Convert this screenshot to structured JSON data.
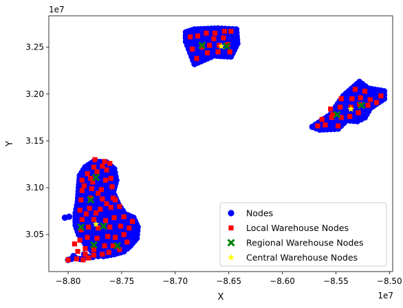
{
  "chart_data": {
    "type": "scatter",
    "xlabel": "X",
    "ylabel": "Y",
    "x_offset_label": "1e7",
    "y_offset_label": "1e7",
    "xlim": [
      -8.818,
      -8.497
    ],
    "ylim": [
      3.0105,
      3.2835
    ],
    "xticks": [
      {
        "value": -8.8,
        "label": "−8.80"
      },
      {
        "value": -8.75,
        "label": "−8.75"
      },
      {
        "value": -8.7,
        "label": "−8.70"
      },
      {
        "value": -8.65,
        "label": "−8.65"
      },
      {
        "value": -8.6,
        "label": "−8.60"
      },
      {
        "value": -8.55,
        "label": "−8.55"
      },
      {
        "value": -8.5,
        "label": "−8.50"
      }
    ],
    "yticks": [
      {
        "value": 3.05,
        "label": "3.05"
      },
      {
        "value": 3.1,
        "label": "3.10"
      },
      {
        "value": 3.15,
        "label": "3.15"
      },
      {
        "value": 3.2,
        "label": "3.20"
      },
      {
        "value": 3.25,
        "label": "3.25"
      }
    ],
    "legend_position": "lower-right",
    "series": [
      {
        "name": "Nodes",
        "marker": "circle",
        "color": "#0000ff",
        "clusters": [
          {
            "outline": [
              [
                -8.789,
                3.113
              ],
              [
                -8.784,
                3.122
              ],
              [
                -8.776,
                3.128
              ],
              [
                -8.764,
                3.127
              ],
              [
                -8.757,
                3.12
              ],
              [
                -8.755,
                3.108
              ],
              [
                -8.758,
                3.095
              ],
              [
                -8.753,
                3.082
              ],
              [
                -8.747,
                3.072
              ],
              [
                -8.739,
                3.068
              ],
              [
                -8.735,
                3.058
              ],
              [
                -8.736,
                3.046
              ],
              [
                -8.742,
                3.038
              ],
              [
                -8.748,
                3.032
              ],
              [
                -8.757,
                3.029
              ],
              [
                -8.767,
                3.027
              ],
              [
                -8.776,
                3.03
              ],
              [
                -8.784,
                3.04
              ],
              [
                -8.79,
                3.05
              ],
              [
                -8.793,
                3.06
              ],
              [
                -8.793,
                3.073
              ],
              [
                -8.791,
                3.085
              ],
              [
                -8.79,
                3.1
              ]
            ],
            "step_x": 0.0045,
            "step_y": 0.0048
          },
          {
            "outline": [
              [
                -8.69,
                3.266
              ],
              [
                -8.682,
                3.269
              ],
              [
                -8.66,
                3.27
              ],
              [
                -8.643,
                3.269
              ],
              [
                -8.642,
                3.254
              ],
              [
                -8.648,
                3.24
              ],
              [
                -8.664,
                3.241
              ],
              [
                -8.682,
                3.232
              ],
              [
                -8.686,
                3.244
              ],
              [
                -8.69,
                3.256
              ]
            ],
            "step_x": 0.0045,
            "step_y": 0.0048
          },
          {
            "outline": [
              [
                -8.572,
                3.165
              ],
              [
                -8.555,
                3.178
              ],
              [
                -8.543,
                3.198
              ],
              [
                -8.528,
                3.213
              ],
              [
                -8.52,
                3.206
              ],
              [
                -8.505,
                3.203
              ],
              [
                -8.505,
                3.195
              ],
              [
                -8.518,
                3.185
              ],
              [
                -8.523,
                3.175
              ],
              [
                -8.53,
                3.171
              ],
              [
                -8.54,
                3.172
              ],
              [
                -8.548,
                3.163
              ],
              [
                -8.565,
                3.162
              ]
            ],
            "step_x": 0.0045,
            "step_y": 0.0048
          }
        ],
        "extra_points": [
          [
            -8.803,
            3.068
          ],
          [
            -8.799,
            3.069
          ],
          [
            -8.8,
            3.023
          ],
          [
            -8.797,
            3.024
          ],
          [
            -8.793,
            3.025
          ],
          [
            -8.789,
            3.024
          ],
          [
            -8.785,
            3.025
          ],
          [
            -8.781,
            3.026
          ],
          [
            -8.777,
            3.026
          ],
          [
            -8.772,
            3.027
          ],
          [
            -8.795,
            3.027
          ],
          [
            -8.785,
            3.029
          ]
        ]
      },
      {
        "name": "Local Warehouse Nodes",
        "marker": "square",
        "color": "#ff0000",
        "points": [
          [
            -8.8,
            3.023
          ],
          [
            -8.792,
            3.024
          ],
          [
            -8.786,
            3.023
          ],
          [
            -8.781,
            3.025
          ],
          [
            -8.791,
            3.032
          ],
          [
            -8.784,
            3.035
          ],
          [
            -8.776,
            3.034
          ],
          [
            -8.766,
            3.038
          ],
          [
            -8.758,
            3.038
          ],
          [
            -8.789,
            3.044
          ],
          [
            -8.782,
            3.047
          ],
          [
            -8.773,
            3.046
          ],
          [
            -8.763,
            3.048
          ],
          [
            -8.756,
            3.047
          ],
          [
            -8.748,
            3.05
          ],
          [
            -8.788,
            3.055
          ],
          [
            -8.781,
            3.058
          ],
          [
            -8.772,
            3.057
          ],
          [
            -8.761,
            3.058
          ],
          [
            -8.751,
            3.059
          ],
          [
            -8.743,
            3.057
          ],
          [
            -8.74,
            3.064
          ],
          [
            -8.787,
            3.066
          ],
          [
            -8.776,
            3.066
          ],
          [
            -8.765,
            3.065
          ],
          [
            -8.757,
            3.068
          ],
          [
            -8.748,
            3.069
          ],
          [
            -8.789,
            3.076
          ],
          [
            -8.78,
            3.078
          ],
          [
            -8.77,
            3.077
          ],
          [
            -8.76,
            3.079
          ],
          [
            -8.752,
            3.08
          ],
          [
            -8.788,
            3.087
          ],
          [
            -8.779,
            3.089
          ],
          [
            -8.768,
            3.088
          ],
          [
            -8.758,
            3.089
          ],
          [
            -8.787,
            3.097
          ],
          [
            -8.778,
            3.099
          ],
          [
            -8.769,
            3.098
          ],
          [
            -8.759,
            3.101
          ],
          [
            -8.787,
            3.108
          ],
          [
            -8.777,
            3.106
          ],
          [
            -8.765,
            3.108
          ],
          [
            -8.76,
            3.11
          ],
          [
            -8.782,
            3.115
          ],
          [
            -8.773,
            3.117
          ],
          [
            -8.764,
            3.119
          ],
          [
            -8.776,
            3.122
          ],
          [
            -8.768,
            3.123
          ],
          [
            -8.766,
            3.128
          ],
          [
            -8.775,
            3.13
          ],
          [
            -8.761,
            3.126
          ],
          [
            -8.784,
            3.029
          ],
          [
            -8.776,
            3.028
          ],
          [
            -8.768,
            3.029
          ],
          [
            -8.762,
            3.031
          ],
          [
            -8.745,
            3.042
          ],
          [
            -8.752,
            3.034
          ],
          [
            -8.794,
            3.04
          ],
          [
            -8.783,
            3.072
          ],
          [
            -8.774,
            3.073
          ],
          [
            -8.764,
            3.083
          ],
          [
            -8.756,
            3.087
          ],
          [
            -8.785,
            3.102
          ],
          [
            -8.772,
            3.094
          ],
          [
            -8.779,
            3.11
          ],
          [
            -8.686,
            3.261
          ],
          [
            -8.679,
            3.262
          ],
          [
            -8.671,
            3.265
          ],
          [
            -8.663,
            3.265
          ],
          [
            -8.654,
            3.267
          ],
          [
            -8.648,
            3.267
          ],
          [
            -8.684,
            3.248
          ],
          [
            -8.675,
            3.25
          ],
          [
            -8.668,
            3.252
          ],
          [
            -8.659,
            3.252
          ],
          [
            -8.651,
            3.253
          ],
          [
            -8.68,
            3.238
          ],
          [
            -8.67,
            3.244
          ],
          [
            -8.66,
            3.245
          ],
          [
            -8.649,
            3.245
          ],
          [
            -8.664,
            3.259
          ],
          [
            -8.655,
            3.26
          ],
          [
            -8.567,
            3.166
          ],
          [
            -8.56,
            3.167
          ],
          [
            -8.548,
            3.166
          ],
          [
            -8.563,
            3.173
          ],
          [
            -8.554,
            3.175
          ],
          [
            -8.545,
            3.175
          ],
          [
            -8.555,
            3.184
          ],
          [
            -8.546,
            3.186
          ],
          [
            -8.536,
            3.186
          ],
          [
            -8.528,
            3.189
          ],
          [
            -8.52,
            3.188
          ],
          [
            -8.512,
            3.191
          ],
          [
            -8.545,
            3.195
          ],
          [
            -8.535,
            3.195
          ],
          [
            -8.527,
            3.196
          ],
          [
            -8.518,
            3.194
          ],
          [
            -8.508,
            3.198
          ],
          [
            -8.532,
            3.205
          ],
          [
            -8.523,
            3.203
          ],
          [
            -8.553,
            3.178
          ],
          [
            -8.537,
            3.176
          ],
          [
            -8.529,
            3.18
          ]
        ]
      },
      {
        "name": "Regional Warehouse Nodes",
        "marker": "x",
        "color": "#008000",
        "points": [
          [
            -8.788,
            3.058
          ],
          [
            -8.779,
            3.087
          ],
          [
            -8.774,
            3.111
          ],
          [
            -8.767,
            3.059
          ],
          [
            -8.776,
            3.039
          ],
          [
            -8.754,
            3.038
          ],
          [
            -8.675,
            3.252
          ],
          [
            -8.652,
            3.251
          ],
          [
            -8.549,
            3.178
          ],
          [
            -8.526,
            3.188
          ]
        ]
      },
      {
        "name": "Central Warehouse Nodes",
        "marker": "star",
        "color": "#ffff00",
        "points": [
          [
            -8.774,
            3.061
          ],
          [
            -8.657,
            3.251
          ],
          [
            -8.536,
            3.184
          ]
        ]
      }
    ]
  }
}
